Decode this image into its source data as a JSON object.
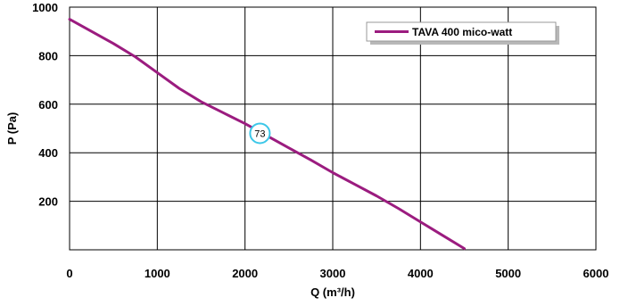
{
  "chart_data": {
    "type": "line",
    "title": "",
    "xlabel": "Q (m³/h)",
    "ylabel": "P (Pa)",
    "xlim": [
      0,
      6000
    ],
    "ylim": [
      0,
      1000
    ],
    "x_ticks": [
      "0",
      "1000",
      "2000",
      "3000",
      "4000",
      "5000",
      "6000"
    ],
    "y_ticks": [
      "200",
      "400",
      "600",
      "800",
      "1000"
    ],
    "x_tick_values": [
      0,
      1000,
      2000,
      3000,
      4000,
      5000,
      6000
    ],
    "y_tick_values": [
      200,
      400,
      600,
      800,
      1000
    ],
    "grid": true,
    "legend_position": "top-right",
    "series": [
      {
        "name": "TAVA 400 mico-watt",
        "color": "#9b1c7f",
        "x": [
          0,
          250,
          500,
          750,
          1000,
          1250,
          1500,
          1750,
          2000,
          2250,
          2500,
          2750,
          3000,
          3250,
          3500,
          3750,
          4000,
          4250,
          4500
        ],
        "y": [
          950,
          900,
          850,
          795,
          730,
          665,
          610,
          565,
          520,
          470,
          420,
          370,
          318,
          270,
          222,
          170,
          115,
          60,
          5
        ]
      }
    ],
    "annotations": [
      {
        "label": "73",
        "x": 2170,
        "y": 480,
        "color": "#3cc7e8"
      }
    ]
  }
}
